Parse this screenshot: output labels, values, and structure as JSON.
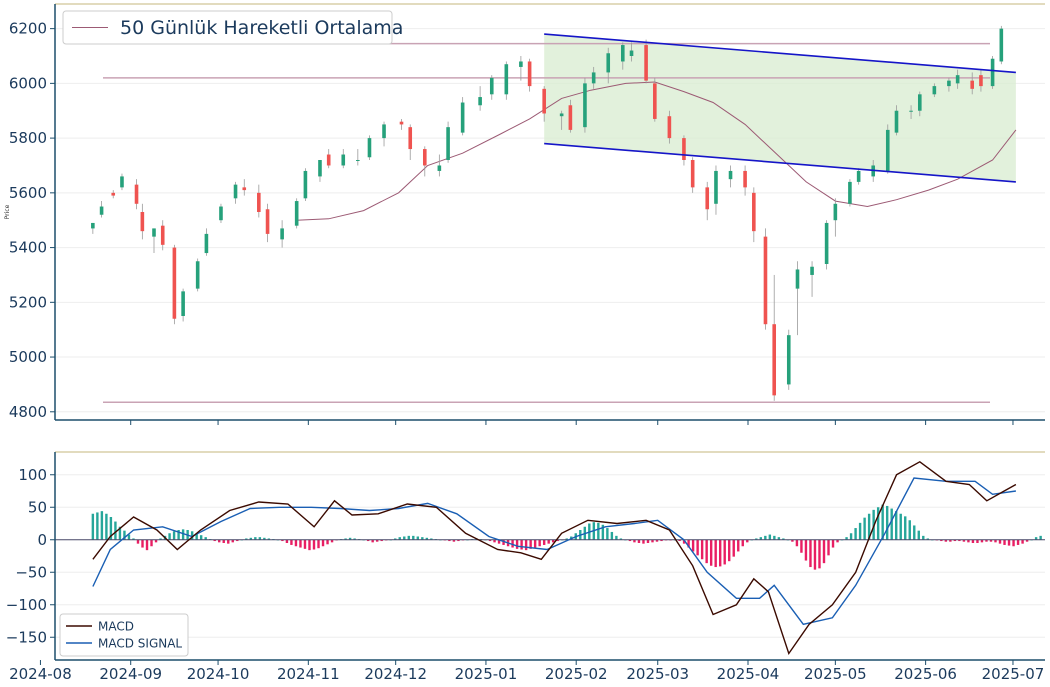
{
  "chart_data": [
    {
      "type": "candlestick",
      "ylabel": "Price",
      "ylim": [
        4770,
        6290
      ],
      "yticks": [
        "4800",
        "5000",
        "5200",
        "5400",
        "5600",
        "5800",
        "6000",
        "6200"
      ],
      "xlim": [
        "2024-08-06",
        "2025-07-12"
      ],
      "legend": {
        "placement": "top-left",
        "entries": [
          "50 Günlük Hareketli Ortalama"
        ]
      },
      "colors": {
        "up": "#26a17b",
        "down": "#ef5350",
        "ma": "#9c5a74",
        "channel": "#1515c8",
        "channel_fill": "#d8ecd0",
        "hlines": "#c9a3b4"
      },
      "horizontal_lines": [
        6145,
        6020,
        4835
      ],
      "channel": {
        "start": "2025-01-21",
        "end": "2025-07-02",
        "upper": [
          6180,
          6040
        ],
        "lower": [
          5780,
          5640
        ]
      },
      "moving_average": {
        "name": "50 Günlük Hareketli Ortalama",
        "x": [
          "2024-10-28",
          "2024-11-08",
          "2024-11-20",
          "2024-12-02",
          "2024-12-12",
          "2024-12-24",
          "2025-01-06",
          "2025-01-16",
          "2025-01-27",
          "2025-02-06",
          "2025-02-18",
          "2025-02-28",
          "2025-03-10",
          "2025-03-20",
          "2025-03-31",
          "2025-04-10",
          "2025-04-21",
          "2025-05-01",
          "2025-05-12",
          "2025-05-22",
          "2025-06-02",
          "2025-06-12",
          "2025-06-24",
          "2025-07-02"
        ],
        "y": [
          5500,
          5505,
          5535,
          5600,
          5700,
          5745,
          5815,
          5870,
          5945,
          5975,
          6000,
          6005,
          5970,
          5930,
          5850,
          5750,
          5640,
          5570,
          5550,
          5575,
          5610,
          5650,
          5720,
          5830
        ]
      },
      "candles": {
        "x": [
          "2024-08-19",
          "2024-08-22",
          "2024-08-26",
          "2024-08-29",
          "2024-09-03",
          "2024-09-05",
          "2024-09-09",
          "2024-09-12",
          "2024-09-16",
          "2024-09-19",
          "2024-09-24",
          "2024-09-27",
          "2024-10-02",
          "2024-10-07",
          "2024-10-10",
          "2024-10-15",
          "2024-10-18",
          "2024-10-23",
          "2024-10-28",
          "2024-10-31",
          "2024-11-05",
          "2024-11-08",
          "2024-11-13",
          "2024-11-18",
          "2024-11-22",
          "2024-11-27",
          "2024-12-03",
          "2024-12-06",
          "2024-12-11",
          "2024-12-16",
          "2024-12-19",
          "2024-12-24",
          "2024-12-30",
          "2025-01-03",
          "2025-01-08",
          "2025-01-13",
          "2025-01-16",
          "2025-01-21",
          "2025-01-27",
          "2025-01-30",
          "2025-02-04",
          "2025-02-07",
          "2025-02-12",
          "2025-02-17",
          "2025-02-20",
          "2025-02-25",
          "2025-02-28",
          "2025-03-05",
          "2025-03-10",
          "2025-03-13",
          "2025-03-18",
          "2025-03-21",
          "2025-03-26",
          "2025-03-31",
          "2025-04-03",
          "2025-04-07",
          "2025-04-10",
          "2025-04-15",
          "2025-04-18",
          "2025-04-23",
          "2025-04-28",
          "2025-05-01",
          "2025-05-06",
          "2025-05-09",
          "2025-05-14",
          "2025-05-19",
          "2025-05-22",
          "2025-05-27",
          "2025-05-30",
          "2025-06-04",
          "2025-06-09",
          "2025-06-12",
          "2025-06-17",
          "2025-06-20",
          "2025-06-24",
          "2025-06-27"
        ],
        "open": [
          5470,
          5520,
          5600,
          5620,
          5630,
          5530,
          5440,
          5480,
          5400,
          5150,
          5250,
          5380,
          5500,
          5580,
          5620,
          5600,
          5540,
          5430,
          5480,
          5580,
          5660,
          5740,
          5700,
          5720,
          5730,
          5800,
          5860,
          5840,
          5760,
          5680,
          5720,
          5820,
          5920,
          5960,
          5960,
          6060,
          6080,
          5980,
          5880,
          5920,
          5840,
          6000,
          6040,
          6080,
          6100,
          6140,
          6000,
          5880,
          5800,
          5720,
          5620,
          5560,
          5650,
          5680,
          5600,
          5440,
          5120,
          4900,
          5250,
          5300,
          5340,
          5500,
          5560,
          5640,
          5660,
          5680,
          5820,
          5900,
          5900,
          5960,
          5990,
          6000,
          6010,
          6030,
          5990,
          6080
        ],
        "high": [
          5490,
          5570,
          5610,
          5670,
          5650,
          5560,
          5470,
          5500,
          5410,
          5250,
          5360,
          5470,
          5560,
          5640,
          5650,
          5630,
          5560,
          5500,
          5580,
          5690,
          5720,
          5760,
          5760,
          5760,
          5810,
          5860,
          5870,
          5850,
          5770,
          5740,
          5860,
          5950,
          5990,
          6030,
          6080,
          6100,
          6090,
          5990,
          5900,
          5940,
          6020,
          6060,
          6130,
          6150,
          6150,
          6160,
          6020,
          5900,
          5810,
          5730,
          5640,
          5700,
          5700,
          5700,
          5620,
          5470,
          5300,
          5100,
          5350,
          5350,
          5500,
          5580,
          5650,
          5690,
          5720,
          5850,
          5920,
          5920,
          5970,
          6000,
          6020,
          6050,
          6040,
          6050,
          6100,
          6210
        ],
        "low": [
          5450,
          5510,
          5580,
          5610,
          5540,
          5430,
          5380,
          5390,
          5120,
          5130,
          5240,
          5370,
          5490,
          5560,
          5590,
          5510,
          5420,
          5400,
          5470,
          5570,
          5640,
          5690,
          5690,
          5700,
          5720,
          5770,
          5830,
          5720,
          5660,
          5660,
          5710,
          5810,
          5900,
          5940,
          5940,
          6010,
          5970,
          5860,
          5830,
          5820,
          5820,
          5980,
          6000,
          6050,
          6080,
          6000,
          5860,
          5780,
          5700,
          5600,
          5500,
          5520,
          5620,
          5590,
          5420,
          5100,
          4840,
          4880,
          5080,
          5220,
          5320,
          5440,
          5550,
          5630,
          5640,
          5670,
          5810,
          5870,
          5880,
          5950,
          5970,
          5980,
          5960,
          5970,
          5980,
          6070
        ],
        "close": [
          5490,
          5550,
          5590,
          5660,
          5560,
          5460,
          5470,
          5410,
          5140,
          5240,
          5350,
          5450,
          5550,
          5630,
          5610,
          5530,
          5450,
          5470,
          5570,
          5680,
          5720,
          5700,
          5740,
          5720,
          5800,
          5850,
          5850,
          5760,
          5700,
          5700,
          5840,
          5930,
          5950,
          6020,
          6070,
          6080,
          5990,
          5890,
          5890,
          5830,
          6000,
          6040,
          6110,
          6140,
          6120,
          6010,
          5870,
          5800,
          5720,
          5620,
          5540,
          5680,
          5680,
          5620,
          5460,
          5120,
          4860,
          5080,
          5320,
          5330,
          5490,
          5560,
          5640,
          5680,
          5700,
          5830,
          5900,
          5900,
          5960,
          5990,
          6010,
          6030,
          5980,
          5990,
          6090,
          6200
        ]
      }
    },
    {
      "type": "line+bar",
      "ylim": [
        -185,
        135
      ],
      "yticks": [
        "100",
        "50",
        "0",
        "−50",
        "−100",
        "−150"
      ],
      "legend": {
        "placement": "bottom-left",
        "entries": [
          "MACD",
          "MACD SIGNAL"
        ]
      },
      "xticks": [
        "2024-08",
        "2024-09",
        "2024-10",
        "2024-11",
        "2024-12",
        "2025-01",
        "2025-02",
        "2025-03",
        "2025-04",
        "2025-05",
        "2025-06",
        "2025-07"
      ],
      "colors": {
        "macd": "#3b0a00",
        "signal": "#1a5fb4",
        "hist_pos": "#26a69a",
        "hist_neg": "#e91e63"
      },
      "macd": {
        "name": "MACD",
        "x": [
          "2024-08-19",
          "2024-08-25",
          "2024-09-02",
          "2024-09-10",
          "2024-09-17",
          "2024-09-25",
          "2024-10-05",
          "2024-10-15",
          "2024-10-25",
          "2024-11-03",
          "2024-11-10",
          "2024-11-16",
          "2024-11-25",
          "2024-12-05",
          "2024-12-15",
          "2024-12-25",
          "2025-01-05",
          "2025-01-13",
          "2025-01-20",
          "2025-01-27",
          "2025-02-05",
          "2025-02-15",
          "2025-02-25",
          "2025-03-05",
          "2025-03-13",
          "2025-03-20",
          "2025-03-28",
          "2025-04-03",
          "2025-04-08",
          "2025-04-15",
          "2025-04-22",
          "2025-04-30",
          "2025-05-08",
          "2025-05-15",
          "2025-05-22",
          "2025-05-30",
          "2025-06-08",
          "2025-06-16",
          "2025-06-22",
          "2025-06-28",
          "2025-07-02"
        ],
        "y": [
          -30,
          5,
          35,
          15,
          -15,
          15,
          45,
          58,
          55,
          20,
          60,
          38,
          40,
          55,
          50,
          10,
          -15,
          -20,
          -30,
          10,
          30,
          25,
          30,
          15,
          -40,
          -115,
          -100,
          -60,
          -80,
          -175,
          -130,
          -100,
          -50,
          30,
          100,
          120,
          90,
          85,
          60,
          75,
          85
        ]
      },
      "signal": {
        "name": "MACD SIGNAL",
        "x": [
          "2024-08-19",
          "2024-08-25",
          "2024-09-02",
          "2024-09-12",
          "2024-09-22",
          "2024-10-02",
          "2024-10-12",
          "2024-10-22",
          "2024-11-02",
          "2024-11-12",
          "2024-11-22",
          "2024-12-02",
          "2024-12-12",
          "2024-12-22",
          "2025-01-02",
          "2025-01-12",
          "2025-01-22",
          "2025-02-01",
          "2025-02-11",
          "2025-02-21",
          "2025-03-01",
          "2025-03-10",
          "2025-03-18",
          "2025-03-28",
          "2025-04-05",
          "2025-04-10",
          "2025-04-20",
          "2025-04-30",
          "2025-05-08",
          "2025-05-18",
          "2025-05-28",
          "2025-06-08",
          "2025-06-18",
          "2025-06-24",
          "2025-07-02"
        ],
        "y": [
          -72,
          -15,
          15,
          20,
          5,
          28,
          48,
          50,
          50,
          48,
          45,
          48,
          56,
          40,
          5,
          -10,
          -15,
          5,
          20,
          25,
          30,
          0,
          -50,
          -90,
          -90,
          -70,
          -130,
          -120,
          -70,
          10,
          95,
          90,
          90,
          70,
          75
        ]
      },
      "histogram": {
        "start": "2024-08-19",
        "step_days": 1.55,
        "values": [
          40,
          42,
          44,
          40,
          35,
          28,
          20,
          14,
          8,
          2,
          -6,
          -12,
          -16,
          -10,
          -4,
          2,
          6,
          10,
          13,
          15,
          16,
          15,
          13,
          10,
          7,
          4,
          1,
          -2,
          -4,
          -5,
          -6,
          -4,
          -2,
          0,
          2,
          3,
          4,
          4,
          3,
          2,
          1,
          0,
          -2,
          -5,
          -8,
          -10,
          -12,
          -14,
          -16,
          -15,
          -13,
          -10,
          -7,
          -4,
          -1,
          1,
          2,
          3,
          2,
          1,
          0,
          -2,
          -4,
          -3,
          -2,
          -1,
          0,
          2,
          4,
          5,
          6,
          6,
          5,
          4,
          3,
          2,
          1,
          0,
          -1,
          -2,
          -3,
          -2,
          -1,
          0,
          1,
          2,
          1,
          0,
          -2,
          -4,
          -6,
          -8,
          -10,
          -12,
          -14,
          -15,
          -16,
          -14,
          -12,
          -10,
          -8,
          -6,
          -4,
          -2,
          0,
          2,
          5,
          10,
          15,
          20,
          25,
          27,
          26,
          23,
          18,
          12,
          6,
          2,
          0,
          -2,
          -4,
          -5,
          -6,
          -5,
          -4,
          -3,
          -2,
          -1,
          -1,
          0,
          -2,
          -6,
          -12,
          -18,
          -24,
          -30,
          -36,
          -40,
          -42,
          -41,
          -38,
          -33,
          -26,
          -18,
          -10,
          -4,
          0,
          2,
          4,
          6,
          8,
          6,
          4,
          2,
          0,
          -3,
          -10,
          -20,
          -32,
          -42,
          -46,
          -44,
          -36,
          -24,
          -12,
          -4,
          0,
          4,
          10,
          18,
          26,
          34,
          40,
          46,
          50,
          54,
          52,
          48,
          44,
          40,
          36,
          30,
          22,
          14,
          6,
          2,
          0,
          -1,
          -2,
          -3,
          -3,
          -2,
          -2,
          -3,
          -4,
          -5,
          -5,
          -4,
          -3,
          -3,
          -4,
          -6,
          -8,
          -9,
          -10,
          -8,
          -6,
          -3,
          0,
          4,
          6,
          8
        ]
      },
      "hline": 0
    }
  ]
}
